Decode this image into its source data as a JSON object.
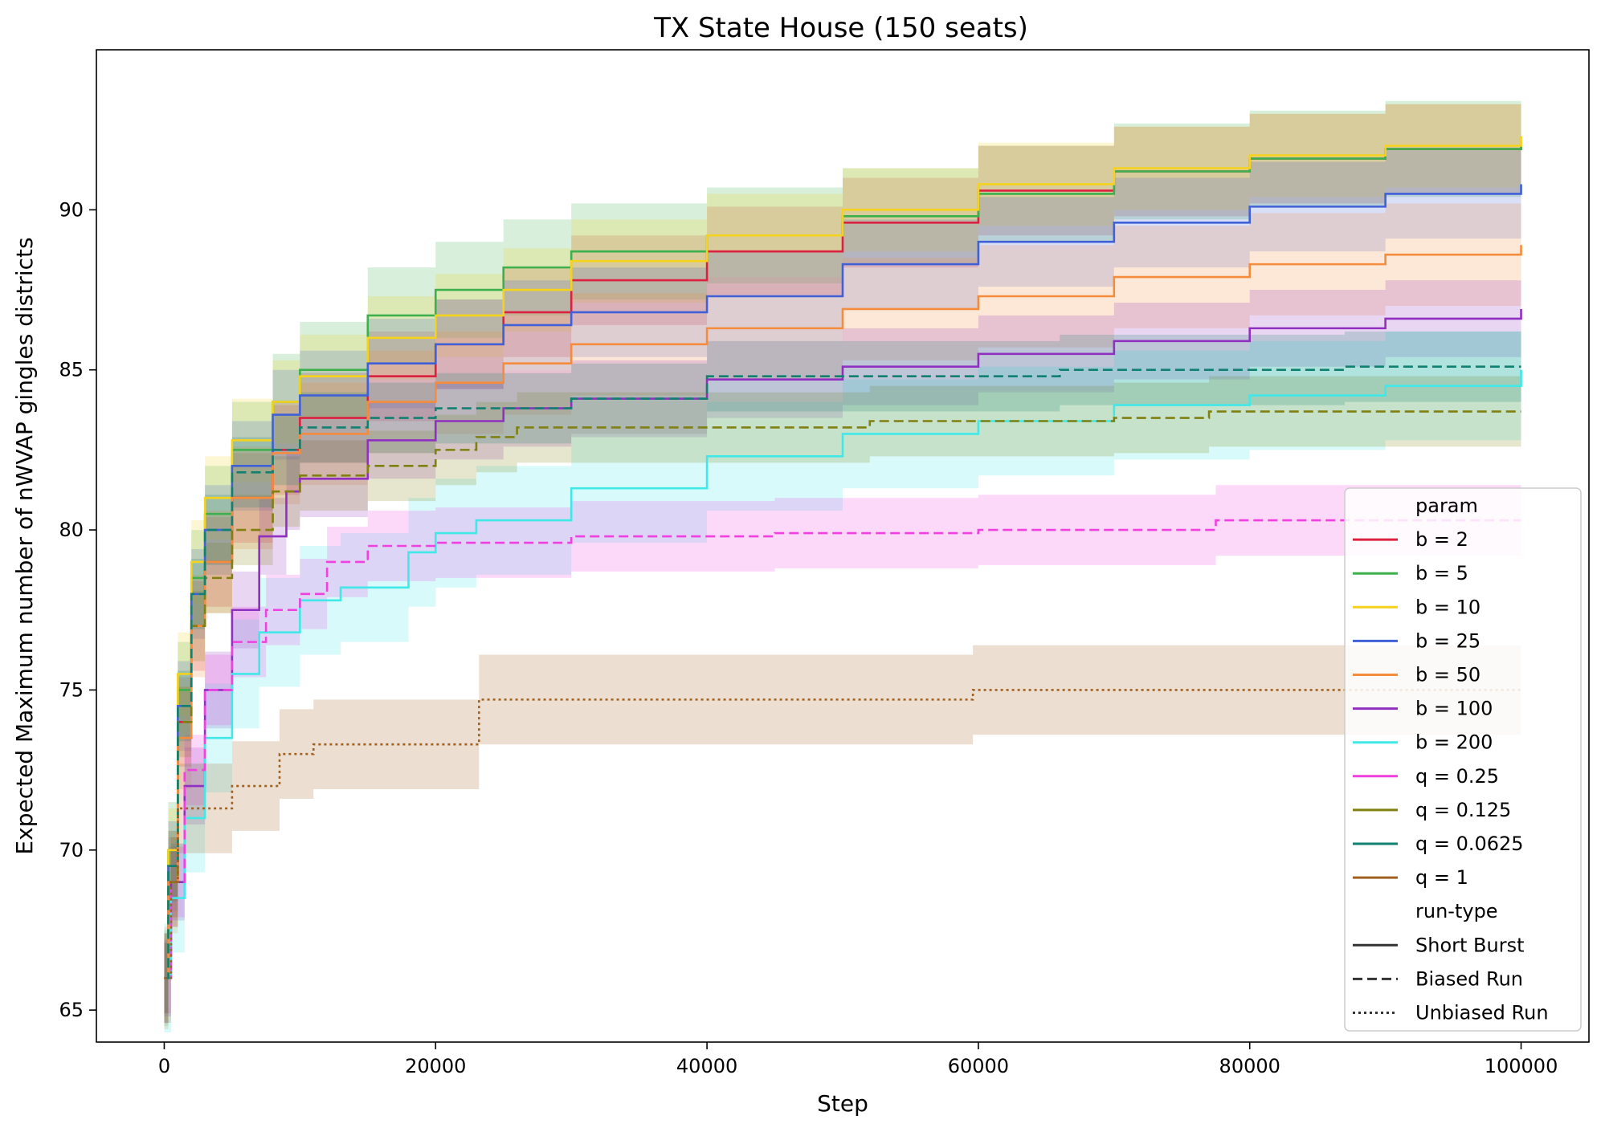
{
  "chart_data": {
    "type": "line",
    "title": "TX State House (150 seats)",
    "xlabel": "Step",
    "ylabel": "Expected Maximum number of nWVAP gingles districts",
    "xlim": [
      -5000,
      105000
    ],
    "ylim": [
      64,
      95
    ],
    "x_ticks": [
      0,
      20000,
      40000,
      60000,
      80000,
      100000
    ],
    "y_ticks": [
      65,
      70,
      75,
      80,
      85,
      90
    ],
    "grid": false,
    "legend": {
      "placement": "bottom-right",
      "param_title": "param",
      "runtype_title": "run-type",
      "run_types": [
        {
          "label": "Short Burst",
          "dash": "solid"
        },
        {
          "label": "Biased Run",
          "dash": "dashed"
        },
        {
          "label": "Unbiased Run",
          "dash": "dotted"
        }
      ]
    },
    "series": [
      {
        "name": "b = 2",
        "color": "#dc2040",
        "style": "solid",
        "band": 1.4,
        "points": [
          [
            0,
            66
          ],
          [
            300,
            69
          ],
          [
            1000,
            74
          ],
          [
            2000,
            77
          ],
          [
            3000,
            79
          ],
          [
            5000,
            81
          ],
          [
            8000,
            82.5
          ],
          [
            10000,
            83.5
          ],
          [
            15000,
            84.8
          ],
          [
            20000,
            85.8
          ],
          [
            25000,
            86.8
          ],
          [
            30000,
            87.8
          ],
          [
            40000,
            88.7
          ],
          [
            50000,
            89.6
          ],
          [
            60000,
            90.6
          ],
          [
            70000,
            91.2
          ],
          [
            80000,
            91.6
          ],
          [
            90000,
            91.9
          ],
          [
            100000,
            92
          ]
        ]
      },
      {
        "name": "b = 5",
        "color": "#3cb04c",
        "style": "solid",
        "band": 1.5,
        "points": [
          [
            0,
            66
          ],
          [
            300,
            70
          ],
          [
            1000,
            75
          ],
          [
            2000,
            78.5
          ],
          [
            3000,
            80.5
          ],
          [
            5000,
            82.5
          ],
          [
            8000,
            84
          ],
          [
            10000,
            85
          ],
          [
            15000,
            86.7
          ],
          [
            20000,
            87.5
          ],
          [
            25000,
            88.2
          ],
          [
            30000,
            88.7
          ],
          [
            40000,
            89.2
          ],
          [
            50000,
            89.8
          ],
          [
            60000,
            90.5
          ],
          [
            70000,
            91.2
          ],
          [
            80000,
            91.6
          ],
          [
            90000,
            91.9
          ],
          [
            100000,
            92
          ]
        ]
      },
      {
        "name": "b = 10",
        "color": "#f5d21c",
        "style": "solid",
        "band": 1.3,
        "points": [
          [
            0,
            66
          ],
          [
            300,
            70
          ],
          [
            1000,
            75.5
          ],
          [
            2000,
            79
          ],
          [
            3000,
            81
          ],
          [
            5000,
            82.8
          ],
          [
            8000,
            84
          ],
          [
            10000,
            84.8
          ],
          [
            15000,
            86
          ],
          [
            20000,
            86.7
          ],
          [
            25000,
            87.5
          ],
          [
            30000,
            88.4
          ],
          [
            40000,
            89.2
          ],
          [
            50000,
            90
          ],
          [
            60000,
            90.8
          ],
          [
            70000,
            91.3
          ],
          [
            80000,
            91.7
          ],
          [
            90000,
            92
          ],
          [
            100000,
            92.3
          ]
        ]
      },
      {
        "name": "b = 25",
        "color": "#4060d8",
        "style": "solid",
        "band": 1.4,
        "points": [
          [
            0,
            66
          ],
          [
            300,
            69.5
          ],
          [
            1000,
            74.5
          ],
          [
            2000,
            78
          ],
          [
            3000,
            80
          ],
          [
            5000,
            82
          ],
          [
            8000,
            83.6
          ],
          [
            10000,
            84.2
          ],
          [
            15000,
            85.2
          ],
          [
            20000,
            85.8
          ],
          [
            25000,
            86.4
          ],
          [
            30000,
            86.8
          ],
          [
            40000,
            87.3
          ],
          [
            50000,
            88.3
          ],
          [
            60000,
            89
          ],
          [
            70000,
            89.6
          ],
          [
            80000,
            90.1
          ],
          [
            90000,
            90.5
          ],
          [
            100000,
            90.8
          ]
        ]
      },
      {
        "name": "b = 50",
        "color": "#f58c3c",
        "style": "solid",
        "band": 1.6,
        "points": [
          [
            0,
            66
          ],
          [
            300,
            69
          ],
          [
            1000,
            73.5
          ],
          [
            2000,
            77
          ],
          [
            3000,
            79
          ],
          [
            5000,
            81
          ],
          [
            8000,
            82.4
          ],
          [
            10000,
            83
          ],
          [
            15000,
            84
          ],
          [
            20000,
            84.6
          ],
          [
            25000,
            85.2
          ],
          [
            30000,
            85.8
          ],
          [
            40000,
            86.3
          ],
          [
            50000,
            86.9
          ],
          [
            60000,
            87.3
          ],
          [
            70000,
            87.9
          ],
          [
            80000,
            88.3
          ],
          [
            90000,
            88.6
          ],
          [
            100000,
            88.9
          ]
        ]
      },
      {
        "name": "b = 100",
        "color": "#9030c0",
        "style": "solid",
        "band": 1.2,
        "points": [
          [
            0,
            66
          ],
          [
            500,
            69
          ],
          [
            1500,
            72
          ],
          [
            3000,
            75
          ],
          [
            5000,
            77.5
          ],
          [
            7000,
            79.8
          ],
          [
            9000,
            81.2
          ],
          [
            10000,
            81.6
          ],
          [
            15000,
            82.8
          ],
          [
            20000,
            83.4
          ],
          [
            25000,
            83.8
          ],
          [
            30000,
            84.1
          ],
          [
            40000,
            84.7
          ],
          [
            50000,
            85.1
          ],
          [
            60000,
            85.5
          ],
          [
            70000,
            85.9
          ],
          [
            80000,
            86.3
          ],
          [
            90000,
            86.6
          ],
          [
            100000,
            86.9
          ]
        ]
      },
      {
        "name": "b = 200",
        "color": "#40e8e8",
        "style": "solid",
        "band": 1.7,
        "points": [
          [
            0,
            66
          ],
          [
            500,
            68.5
          ],
          [
            1500,
            71
          ],
          [
            3000,
            73.5
          ],
          [
            5000,
            75.5
          ],
          [
            7000,
            76.8
          ],
          [
            10000,
            77.8
          ],
          [
            13000,
            78.2
          ],
          [
            18000,
            79.3
          ],
          [
            20000,
            79.9
          ],
          [
            23000,
            80.3
          ],
          [
            30000,
            81.3
          ],
          [
            40000,
            82.3
          ],
          [
            50000,
            83
          ],
          [
            60000,
            83.4
          ],
          [
            70000,
            83.9
          ],
          [
            80000,
            84.2
          ],
          [
            90000,
            84.5
          ],
          [
            100000,
            85
          ]
        ]
      },
      {
        "name": "q = 0.25",
        "color": "#f040e0",
        "style": "dashed",
        "band": 1.1,
        "points": [
          [
            0,
            66
          ],
          [
            500,
            69
          ],
          [
            1500,
            72.5
          ],
          [
            3000,
            75
          ],
          [
            5000,
            76.5
          ],
          [
            7500,
            77.5
          ],
          [
            10000,
            78
          ],
          [
            12000,
            79
          ],
          [
            15000,
            79.5
          ],
          [
            20000,
            79.6
          ],
          [
            30000,
            79.8
          ],
          [
            45000,
            79.9
          ],
          [
            60000,
            80
          ],
          [
            77000,
            80
          ],
          [
            77500,
            80.3
          ],
          [
            100000,
            80.3
          ]
        ]
      },
      {
        "name": "q = 0.125",
        "color": "#808010",
        "style": "dashed",
        "band": 1.1,
        "points": [
          [
            0,
            66
          ],
          [
            300,
            69
          ],
          [
            1000,
            74
          ],
          [
            2000,
            77
          ],
          [
            3000,
            78.5
          ],
          [
            5000,
            80
          ],
          [
            8000,
            81.2
          ],
          [
            10000,
            81.7
          ],
          [
            15000,
            82
          ],
          [
            20000,
            82.5
          ],
          [
            23000,
            82.9
          ],
          [
            26000,
            83.2
          ],
          [
            40000,
            83.2
          ],
          [
            52000,
            83.4
          ],
          [
            70000,
            83.5
          ],
          [
            77000,
            83.7
          ],
          [
            100000,
            83.7
          ]
        ]
      },
      {
        "name": "q = 0.0625",
        "color": "#108070",
        "style": "dashed",
        "band": 1.1,
        "points": [
          [
            0,
            66
          ],
          [
            300,
            69.5
          ],
          [
            1000,
            74.5
          ],
          [
            2000,
            78
          ],
          [
            3000,
            80
          ],
          [
            5000,
            81.8
          ],
          [
            8000,
            82.5
          ],
          [
            10000,
            83.2
          ],
          [
            15000,
            83.5
          ],
          [
            20000,
            83.8
          ],
          [
            30000,
            84.1
          ],
          [
            40000,
            84.8
          ],
          [
            50000,
            84.8
          ],
          [
            66000,
            85
          ],
          [
            87000,
            85.1
          ],
          [
            100000,
            85.1
          ]
        ]
      },
      {
        "name": "q = 1",
        "color": "#a06020",
        "style": "dotted",
        "band": 1.4,
        "points": [
          [
            0,
            66
          ],
          [
            500,
            69
          ],
          [
            1000,
            71.3
          ],
          [
            4000,
            71.3
          ],
          [
            5000,
            72
          ],
          [
            8000,
            72
          ],
          [
            8500,
            73
          ],
          [
            10500,
            73
          ],
          [
            11000,
            73.3
          ],
          [
            23000,
            73.3
          ],
          [
            23200,
            74.7
          ],
          [
            59500,
            74.7
          ],
          [
            59600,
            75
          ],
          [
            100000,
            75
          ]
        ]
      }
    ]
  }
}
